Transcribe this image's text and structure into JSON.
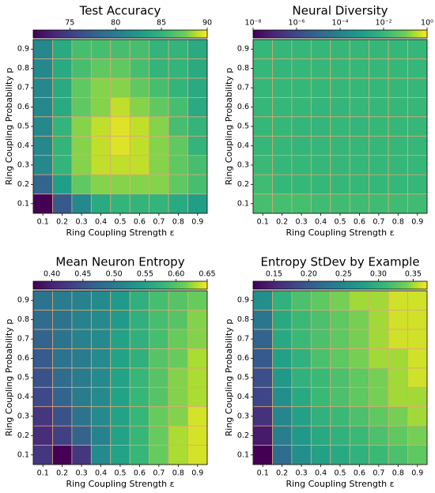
{
  "chart_data": [
    {
      "type": "heatmap",
      "title": "Test Accuracy",
      "x_label": "Ring Coupling Strength ε",
      "y_label": "Ring Coupling Probability p",
      "x_categories": [
        "0.1",
        "0.2",
        "0.3",
        "0.4",
        "0.5",
        "0.6",
        "0.7",
        "0.8",
        "0.9"
      ],
      "y_categories": [
        "0.1",
        "0.2",
        "0.3",
        "0.4",
        "0.5",
        "0.6",
        "0.7",
        "0.8",
        "0.9"
      ],
      "colormap": "viridis",
      "log": false,
      "edgecolor": "#e0a878",
      "clim": [
        71,
        90
      ],
      "cticks": [
        75,
        80,
        85,
        90
      ],
      "values": [
        [
          71,
          77,
          81,
          84,
          85,
          85,
          85,
          84,
          83
        ],
        [
          78,
          83,
          87,
          88,
          88,
          88,
          88,
          87,
          86
        ],
        [
          81,
          85,
          88,
          89,
          89,
          89,
          88,
          87,
          86
        ],
        [
          81,
          85,
          88,
          89,
          89.5,
          89,
          88,
          87,
          85
        ],
        [
          81,
          85,
          88,
          89,
          89.5,
          89,
          88,
          86,
          85
        ],
        [
          81,
          84,
          87,
          88,
          89,
          88,
          87,
          86,
          84
        ],
        [
          81,
          84,
          87,
          88,
          88,
          87,
          86,
          85,
          84
        ],
        [
          81,
          84,
          86,
          87,
          87,
          86,
          85,
          85,
          84
        ],
        [
          81,
          84,
          86,
          86,
          86,
          86,
          85,
          85,
          84
        ]
      ]
    },
    {
      "type": "heatmap",
      "title": "Neural Diversity",
      "x_label": "Ring Coupling Strength ε",
      "y_label": "Ring Coupling Probability p",
      "x_categories": [
        "0.1",
        "0.2",
        "0.3",
        "0.4",
        "0.5",
        "0.6",
        "0.7",
        "0.8",
        "0.9"
      ],
      "y_categories": [
        "0.1",
        "0.2",
        "0.3",
        "0.4",
        "0.5",
        "0.6",
        "0.7",
        "0.8",
        "0.9"
      ],
      "colormap": "viridis",
      "log": true,
      "edgecolor": "#e0a878",
      "clim": [
        1e-08,
        1
      ],
      "cticks": [
        {
          "value": 1e-08,
          "label": "10⁻⁸"
        },
        {
          "value": 1e-06,
          "label": "10⁻⁶"
        },
        {
          "value": 0.0001,
          "label": "10⁻⁴"
        },
        {
          "value": 0.01,
          "label": "10⁻²"
        },
        {
          "value": 1,
          "label": "10⁰"
        }
      ],
      "values": [
        [
          0.02,
          0.02,
          0.02,
          0.015,
          0.015,
          0.015,
          0.015,
          0.015,
          0.015
        ],
        [
          0.015,
          0.01,
          0.01,
          0.01,
          0.01,
          0.01,
          0.01,
          0.01,
          0.01
        ],
        [
          0.012,
          0.01,
          0.01,
          0.01,
          0.01,
          0.01,
          0.01,
          0.01,
          0.01
        ],
        [
          0.01,
          0.01,
          0.008,
          0.01,
          0.01,
          0.01,
          0.01,
          0.01,
          0.01
        ],
        [
          0.01,
          0.01,
          0.008,
          0.008,
          0.01,
          0.008,
          0.01,
          0.01,
          0.01
        ],
        [
          0.01,
          0.01,
          0.01,
          0.008,
          0.008,
          0.01,
          0.01,
          0.01,
          0.01
        ],
        [
          0.01,
          0.01,
          0.01,
          0.01,
          0.01,
          0.01,
          0.01,
          0.01,
          0.01
        ],
        [
          0.01,
          0.008,
          0.01,
          0.01,
          0.01,
          0.01,
          0.01,
          0.01,
          0.01
        ],
        [
          0.01,
          0.01,
          0.01,
          0.01,
          0.01,
          0.01,
          0.01,
          0.01,
          0.01
        ]
      ]
    },
    {
      "type": "heatmap",
      "title": "Mean Neuron Entropy",
      "x_label": "Ring Coupling Strength ε",
      "y_label": "Ring Coupling Probability p",
      "x_categories": [
        "0.1",
        "0.2",
        "0.3",
        "0.4",
        "0.5",
        "0.6",
        "0.7",
        "0.8",
        "0.9"
      ],
      "y_categories": [
        "0.1",
        "0.2",
        "0.3",
        "0.4",
        "0.5",
        "0.6",
        "0.7",
        "0.8",
        "0.9"
      ],
      "colormap": "viridis",
      "log": false,
      "edgecolor": "#e0a878",
      "clim": [
        0.37,
        0.65
      ],
      "cticks": [
        {
          "value": 0.4,
          "label": "0.40"
        },
        0.45,
        {
          "value": 0.5,
          "label": "0.50"
        },
        0.55,
        {
          "value": 0.6,
          "label": "0.60"
        },
        0.65
      ],
      "values": [
        [
          0.42,
          0.37,
          0.42,
          0.52,
          0.55,
          0.58,
          0.61,
          0.63,
          0.64
        ],
        [
          0.41,
          0.43,
          0.47,
          0.51,
          0.55,
          0.58,
          0.61,
          0.63,
          0.64
        ],
        [
          0.42,
          0.45,
          0.49,
          0.52,
          0.55,
          0.58,
          0.61,
          0.62,
          0.64
        ],
        [
          0.44,
          0.47,
          0.5,
          0.52,
          0.55,
          0.58,
          0.6,
          0.62,
          0.63
        ],
        [
          0.45,
          0.48,
          0.5,
          0.52,
          0.55,
          0.58,
          0.6,
          0.62,
          0.63
        ],
        [
          0.46,
          0.49,
          0.5,
          0.52,
          0.55,
          0.57,
          0.6,
          0.61,
          0.63
        ],
        [
          0.47,
          0.49,
          0.51,
          0.52,
          0.55,
          0.57,
          0.59,
          0.61,
          0.62
        ],
        [
          0.48,
          0.49,
          0.51,
          0.52,
          0.54,
          0.57,
          0.59,
          0.6,
          0.62
        ],
        [
          0.49,
          0.5,
          0.51,
          0.52,
          0.54,
          0.57,
          0.59,
          0.6,
          0.61
        ]
      ]
    },
    {
      "type": "heatmap",
      "title": "Entropy StDev by Example",
      "x_label": "Ring Coupling Strength ε",
      "y_label": "Ring Coupling Probability p",
      "x_categories": [
        "0.1",
        "0.2",
        "0.3",
        "0.4",
        "0.5",
        "0.6",
        "0.7",
        "0.8",
        "0.9"
      ],
      "y_categories": [
        "0.1",
        "0.2",
        "0.3",
        "0.4",
        "0.5",
        "0.6",
        "0.7",
        "0.8",
        "0.9"
      ],
      "colormap": "viridis",
      "log": false,
      "edgecolor": "#e0a878",
      "clim": [
        0.12,
        0.37
      ],
      "cticks": [
        0.15,
        {
          "value": 0.2,
          "label": "0.20"
        },
        0.25,
        {
          "value": 0.3,
          "label": "0.30"
        },
        0.35
      ],
      "values": [
        [
          0.12,
          0.22,
          0.26,
          0.28,
          0.29,
          0.3,
          0.31,
          0.32,
          0.33
        ],
        [
          0.14,
          0.24,
          0.27,
          0.29,
          0.3,
          0.31,
          0.32,
          0.33,
          0.34
        ],
        [
          0.16,
          0.25,
          0.28,
          0.3,
          0.31,
          0.32,
          0.33,
          0.34,
          0.35
        ],
        [
          0.18,
          0.26,
          0.29,
          0.31,
          0.32,
          0.33,
          0.34,
          0.35,
          0.35
        ],
        [
          0.19,
          0.27,
          0.3,
          0.31,
          0.32,
          0.33,
          0.34,
          0.35,
          0.36
        ],
        [
          0.2,
          0.28,
          0.3,
          0.32,
          0.33,
          0.34,
          0.35,
          0.35,
          0.36
        ],
        [
          0.21,
          0.29,
          0.31,
          0.32,
          0.33,
          0.34,
          0.35,
          0.36,
          0.36
        ],
        [
          0.23,
          0.29,
          0.31,
          0.32,
          0.33,
          0.34,
          0.35,
          0.36,
          0.36
        ],
        [
          0.26,
          0.3,
          0.32,
          0.33,
          0.34,
          0.35,
          0.35,
          0.36,
          0.36
        ]
      ]
    }
  ]
}
